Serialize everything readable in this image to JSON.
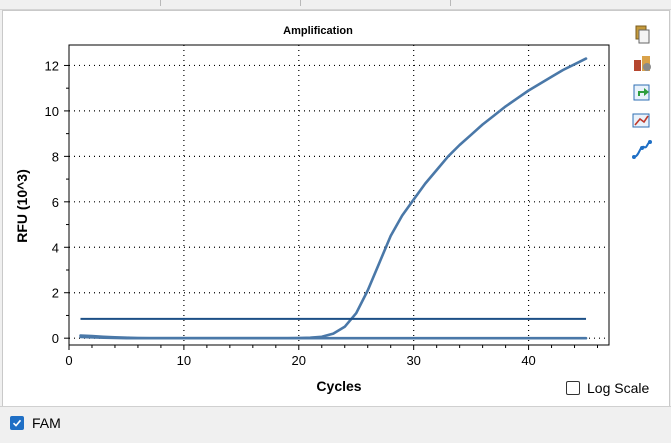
{
  "chart_data": {
    "type": "line",
    "title": "Amplification",
    "xlabel": "Cycles",
    "ylabel": "RFU (10^3)",
    "xlim": [
      0,
      47
    ],
    "ylim": [
      -0.3,
      12.9
    ],
    "xticks": [
      0,
      10,
      20,
      30,
      40
    ],
    "yticks": [
      0,
      2,
      4,
      6,
      8,
      10,
      12
    ],
    "grid": true,
    "threshold": 0.85,
    "series": [
      {
        "color": "#4a78a8",
        "x": [
          1,
          2,
          3,
          4,
          5,
          6,
          7,
          8,
          9,
          10,
          11,
          12,
          13,
          14,
          15,
          16,
          17,
          18,
          19,
          20,
          21,
          22,
          23,
          24,
          25,
          26,
          27,
          28,
          29,
          30,
          31,
          32,
          33,
          34,
          35,
          36,
          37,
          38,
          39,
          40,
          41,
          42,
          43,
          44,
          45
        ],
        "y": [
          0.12,
          0.09,
          0.06,
          0.04,
          0.02,
          0.01,
          0.0,
          0.0,
          0.0,
          0.0,
          0.0,
          0.0,
          0.0,
          0.0,
          0.0,
          0.0,
          0.0,
          0.0,
          0.0,
          0.01,
          0.02,
          0.06,
          0.2,
          0.5,
          1.1,
          2.1,
          3.3,
          4.5,
          5.4,
          6.1,
          6.8,
          7.4,
          8.0,
          8.5,
          8.95,
          9.4,
          9.8,
          10.2,
          10.55,
          10.9,
          11.2,
          11.5,
          11.8,
          12.05,
          12.3
        ]
      },
      {
        "color": "#4a78a8",
        "x": [
          1,
          2,
          3,
          5,
          8,
          10,
          15,
          20,
          25,
          30,
          35,
          40,
          45
        ],
        "y": [
          0.05,
          0.04,
          0.02,
          0.0,
          0.0,
          0.0,
          0.0,
          0.0,
          0.0,
          0.0,
          0.0,
          0.0,
          0.0
        ]
      }
    ]
  },
  "log_scale": {
    "label": "Log Scale",
    "checked": false
  },
  "legend": {
    "fam_label": "FAM",
    "checked": true
  },
  "toolbar_icons": [
    "copy-icon",
    "properties-icon",
    "export-icon",
    "zoom-icon",
    "curve-icon"
  ]
}
